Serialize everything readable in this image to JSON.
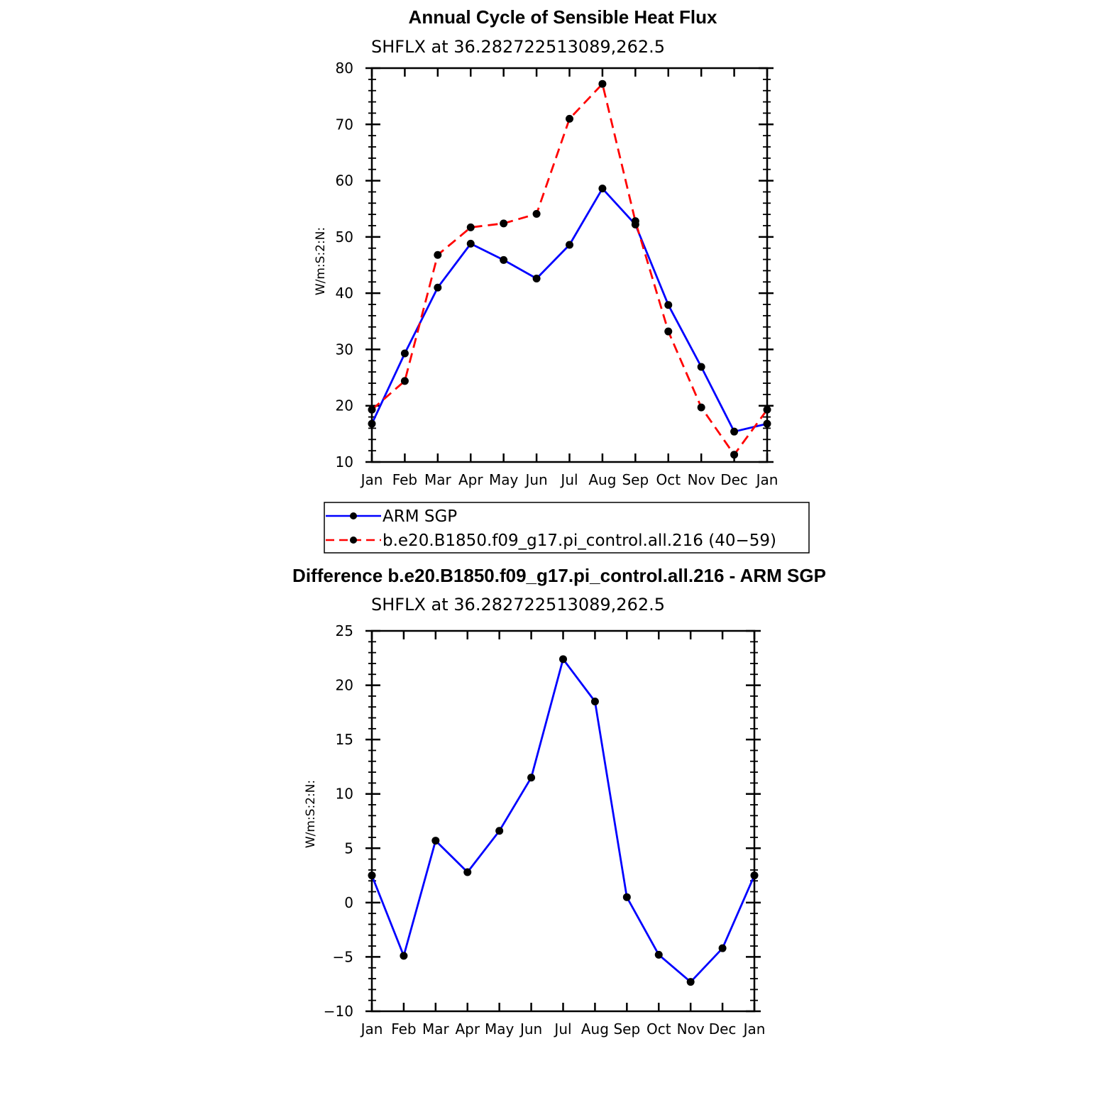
{
  "colors": {
    "arm": "#0000ff",
    "model": "#ff0000",
    "marker": "#000000",
    "axis": "#000000"
  },
  "chart_data": [
    {
      "type": "line",
      "title": "Annual Cycle of Sensible Heat Flux",
      "subtitle": "SHFLX  at  36.282722513089,262.5",
      "ylabel": "W/m:S:2:N:",
      "xlabel": "",
      "categories": [
        "Jan",
        "Feb",
        "Mar",
        "Apr",
        "May",
        "Jun",
        "Jul",
        "Aug",
        "Sep",
        "Oct",
        "Nov",
        "Dec",
        "Jan"
      ],
      "ylim": [
        10,
        80
      ],
      "yticks": [
        10,
        20,
        30,
        40,
        50,
        60,
        70,
        80
      ],
      "grid": false,
      "legend_placement": "below",
      "series": [
        {
          "name": "ARM  SGP",
          "color": "#0000ff",
          "dash": "solid",
          "values": [
            16.8,
            29.3,
            41.0,
            48.8,
            45.9,
            42.6,
            48.6,
            58.6,
            52.2,
            37.9,
            26.9,
            15.4,
            16.8
          ]
        },
        {
          "name": "b.e20.B1850.f09_g17.pi_control.all.216  (40−59)",
          "color": "#ff0000",
          "dash": "dashed",
          "values": [
            19.3,
            24.4,
            46.8,
            51.7,
            52.4,
            54.1,
            71.0,
            77.2,
            52.8,
            33.2,
            19.7,
            11.3,
            19.3
          ]
        }
      ]
    },
    {
      "type": "line",
      "title": "Difference b.e20.B1850.f09_g17.pi_control.all.216 - ARM SGP",
      "subtitle": "SHFLX  at  36.282722513089,262.5",
      "ylabel": "W/m:S:2:N:",
      "xlabel": "",
      "categories": [
        "Jan",
        "Feb",
        "Mar",
        "Apr",
        "May",
        "Jun",
        "Jul",
        "Aug",
        "Sep",
        "Oct",
        "Nov",
        "Dec",
        "Jan"
      ],
      "ylim": [
        -10,
        25
      ],
      "yticks": [
        -10,
        -5,
        0,
        5,
        10,
        15,
        20,
        25
      ],
      "ytick_labels": [
        "−10",
        "−5",
        "0",
        "5",
        "10",
        "15",
        "20",
        "25"
      ],
      "grid": false,
      "series": [
        {
          "color": "#0000ff",
          "dash": "solid",
          "values": [
            2.5,
            -4.9,
            5.7,
            2.8,
            6.6,
            11.5,
            22.4,
            18.5,
            0.5,
            -4.8,
            -7.3,
            -4.2,
            2.5
          ]
        }
      ]
    }
  ]
}
